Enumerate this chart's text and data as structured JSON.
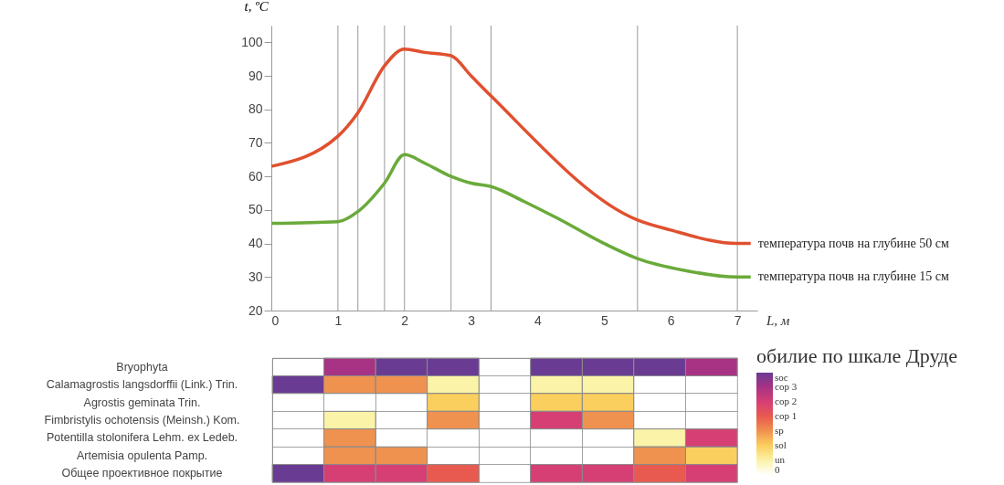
{
  "chart_data": [
    {
      "type": "line",
      "xlabel": "L, м",
      "ylabel": "t, ºC",
      "xlim": [
        0,
        7.3
      ],
      "xticks": [
        0,
        1,
        2,
        3,
        4,
        5,
        6,
        7
      ],
      "ylim": [
        20,
        105
      ],
      "yticks": [
        20,
        30,
        40,
        50,
        60,
        70,
        80,
        90,
        100
      ],
      "ref_lines": [
        {
          "axis": "x",
          "value": 1,
          "color": "#999999"
        },
        {
          "axis": "x",
          "value": 1.3,
          "color": "#999999"
        },
        {
          "axis": "x",
          "value": 1.7,
          "color": "#999999"
        },
        {
          "axis": "x",
          "value": 2,
          "color": "#999999"
        },
        {
          "axis": "x",
          "value": 2.7,
          "color": "#999999"
        },
        {
          "axis": "x",
          "value": 3.3,
          "color": "#999999"
        },
        {
          "axis": "x",
          "value": 5.5,
          "color": "#999999"
        },
        {
          "axis": "x",
          "value": 7,
          "color": "#999999"
        }
      ],
      "series": [
        {
          "name": "температура почв на глубине 50 см",
          "color": "#e0502f",
          "x": [
            0,
            1,
            1.3,
            1.7,
            2,
            2.3,
            2.7,
            3,
            3.3,
            5.5,
            6,
            7,
            7.2
          ],
          "values": [
            63,
            72,
            79,
            93,
            98,
            97,
            96,
            90,
            84,
            47,
            44,
            40,
            40
          ]
        },
        {
          "name": "температура почв на глубине 15 см",
          "color": "#6aaa3a",
          "x": [
            0,
            1,
            1.3,
            1.7,
            2,
            2.3,
            2.7,
            3,
            3.3,
            3.8,
            4.3,
            5,
            5.5,
            6.2,
            7,
            7.2
          ],
          "values": [
            46,
            46.5,
            49.5,
            58,
            66.5,
            64,
            60,
            58,
            57,
            52.5,
            47.5,
            40,
            35.5,
            32,
            30,
            30
          ]
        }
      ]
    },
    {
      "type": "heatmap",
      "categories": [
        null,
        null,
        null,
        null,
        null,
        null,
        null,
        null,
        null
      ],
      "y_categories": [
        "Bryophyta",
        "Calamagrostis langsdorffii (Link.) Trin.",
        "Agrostis geminata Trin.",
        "Fimbristylis ochotensis (Meinsh.) Kom.",
        "Potentilla stolonifera Lehm. ex Ledeb.",
        "Artemisia opulenta Pamp.",
        "Общее проективное покрытие"
      ],
      "cells": [
        [
          null,
          6,
          7,
          7,
          null,
          7,
          7,
          7,
          6
        ],
        [
          7,
          3,
          3,
          1,
          null,
          1,
          1,
          null,
          null
        ],
        [
          null,
          null,
          null,
          2,
          null,
          2,
          2,
          null,
          null
        ],
        [
          null,
          1,
          null,
          3,
          null,
          5,
          3,
          null,
          null
        ],
        [
          null,
          3,
          null,
          null,
          null,
          null,
          null,
          1,
          5
        ],
        [
          null,
          3,
          3,
          null,
          null,
          null,
          null,
          3,
          2
        ],
        [
          7,
          5,
          5,
          4,
          null,
          5,
          5,
          4,
          5
        ]
      ],
      "legend_title": "обилие по шкале Друде",
      "clim": [
        0,
        7
      ],
      "cticks": [
        0,
        {
          "value": 1,
          "label": "un"
        },
        {
          "value": 2,
          "label": "sol"
        },
        {
          "value": 3,
          "label": "sp"
        },
        {
          "value": 4,
          "label": "cop 1"
        },
        {
          "value": 5,
          "label": "cop 2"
        },
        {
          "value": 6,
          "label": "cop 3"
        },
        {
          "value": 7,
          "label": "soc"
        }
      ],
      "colors": [
        "#ffffff",
        "#fbf3a8",
        "#fbcf5e",
        "#f0924f",
        "#e85a4f",
        "#d63f74",
        "#a83384",
        "#6a3b93"
      ]
    }
  ]
}
